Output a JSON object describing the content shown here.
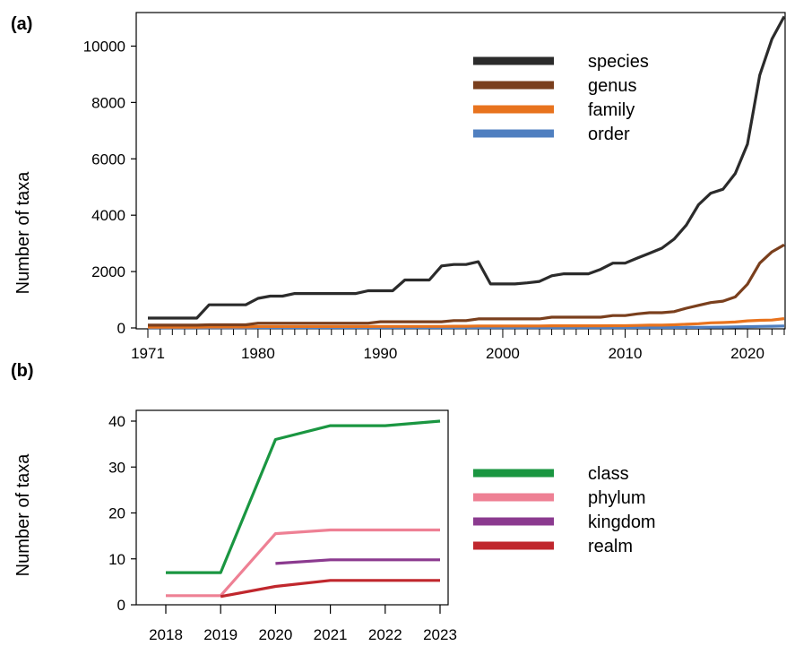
{
  "chart_data": [
    {
      "panel_label": "(a)",
      "type": "line",
      "xlabel": "",
      "ylabel": "Number of taxa",
      "xlim": [
        1971,
        2023
      ],
      "ylim": [
        0,
        11000
      ],
      "x_ticks": [
        1971,
        1980,
        1990,
        2000,
        2010,
        2020
      ],
      "y_ticks": [
        0,
        2000,
        4000,
        6000,
        8000,
        10000
      ],
      "legend_position": "top-right",
      "x": [
        1971,
        1972,
        1973,
        1974,
        1975,
        1976,
        1977,
        1978,
        1979,
        1980,
        1981,
        1982,
        1983,
        1984,
        1985,
        1986,
        1987,
        1988,
        1989,
        1990,
        1991,
        1992,
        1993,
        1994,
        1995,
        1996,
        1997,
        1998,
        1999,
        2000,
        2001,
        2002,
        2003,
        2004,
        2005,
        2006,
        2007,
        2008,
        2009,
        2010,
        2011,
        2012,
        2013,
        2014,
        2015,
        2016,
        2017,
        2018,
        2019,
        2020,
        2021,
        2022,
        2023
      ],
      "series": [
        {
          "name": "species",
          "color": "#2b2b2b",
          "values": [
            350,
            350,
            350,
            350,
            350,
            820,
            820,
            820,
            820,
            1050,
            1130,
            1130,
            1220,
            1220,
            1220,
            1220,
            1220,
            1220,
            1320,
            1320,
            1320,
            1700,
            1700,
            1700,
            2200,
            2250,
            2250,
            2350,
            1560,
            1560,
            1560,
            1600,
            1650,
            1850,
            1920,
            1920,
            1920,
            2080,
            2300,
            2300,
            2480,
            2650,
            2830,
            3150,
            3650,
            4370,
            4780,
            4920,
            5480,
            6520,
            8970,
            10250,
            11050
          ]
        },
        {
          "name": "genus",
          "color": "#7a3f1d",
          "values": [
            100,
            100,
            100,
            100,
            100,
            110,
            110,
            110,
            110,
            170,
            170,
            170,
            170,
            170,
            170,
            170,
            170,
            170,
            170,
            220,
            220,
            220,
            220,
            220,
            220,
            260,
            260,
            320,
            320,
            320,
            320,
            320,
            320,
            380,
            380,
            380,
            380,
            380,
            440,
            440,
            500,
            540,
            540,
            580,
            700,
            800,
            900,
            950,
            1100,
            1550,
            2300,
            2700,
            2950
          ]
        },
        {
          "name": "family",
          "color": "#e8731e",
          "values": [
            30,
            30,
            30,
            30,
            30,
            35,
            35,
            35,
            35,
            50,
            50,
            50,
            50,
            50,
            50,
            50,
            50,
            50,
            50,
            55,
            55,
            55,
            55,
            55,
            55,
            60,
            60,
            70,
            70,
            70,
            70,
            70,
            70,
            75,
            75,
            75,
            75,
            75,
            80,
            80,
            90,
            100,
            100,
            110,
            130,
            150,
            180,
            190,
            210,
            250,
            270,
            280,
            330
          ]
        },
        {
          "name": "order",
          "color": "#4f7fc0",
          "values": [
            5,
            5,
            5,
            5,
            5,
            6,
            6,
            6,
            6,
            8,
            8,
            8,
            8,
            8,
            8,
            8,
            8,
            8,
            8,
            9,
            9,
            9,
            9,
            9,
            9,
            10,
            10,
            12,
            12,
            12,
            12,
            12,
            12,
            13,
            13,
            13,
            13,
            13,
            14,
            14,
            15,
            15,
            15,
            16,
            18,
            20,
            25,
            30,
            35,
            45,
            55,
            60,
            70
          ]
        }
      ]
    },
    {
      "panel_label": "(b)",
      "type": "line",
      "xlabel": "",
      "ylabel": "Number of taxa",
      "xlim": [
        2018,
        2023
      ],
      "ylim": [
        0,
        40
      ],
      "x_ticks": [
        2018,
        2019,
        2020,
        2021,
        2022,
        2023
      ],
      "y_ticks": [
        0,
        10,
        20,
        30,
        40
      ],
      "legend_position": "right",
      "series": [
        {
          "name": "class",
          "color": "#1a9641",
          "x": [
            2018,
            2019,
            2020,
            2021,
            2022,
            2023
          ],
          "values": [
            7,
            7,
            36,
            39,
            39,
            40
          ]
        },
        {
          "name": "phylum",
          "color": "#ee8094",
          "x": [
            2018,
            2019,
            2020,
            2021,
            2022,
            2023
          ],
          "values": [
            2,
            2,
            15.5,
            16.3,
            16.3,
            16.3
          ]
        },
        {
          "name": "kingdom",
          "color": "#8b3a8f",
          "x": [
            2020,
            2021,
            2022,
            2023
          ],
          "values": [
            9,
            9.8,
            9.8,
            9.8
          ]
        },
        {
          "name": "realm",
          "color": "#c0272d",
          "x": [
            2019,
            2020,
            2021,
            2022,
            2023
          ],
          "values": [
            1.8,
            4,
            5.3,
            5.3,
            5.3
          ]
        }
      ]
    }
  ]
}
